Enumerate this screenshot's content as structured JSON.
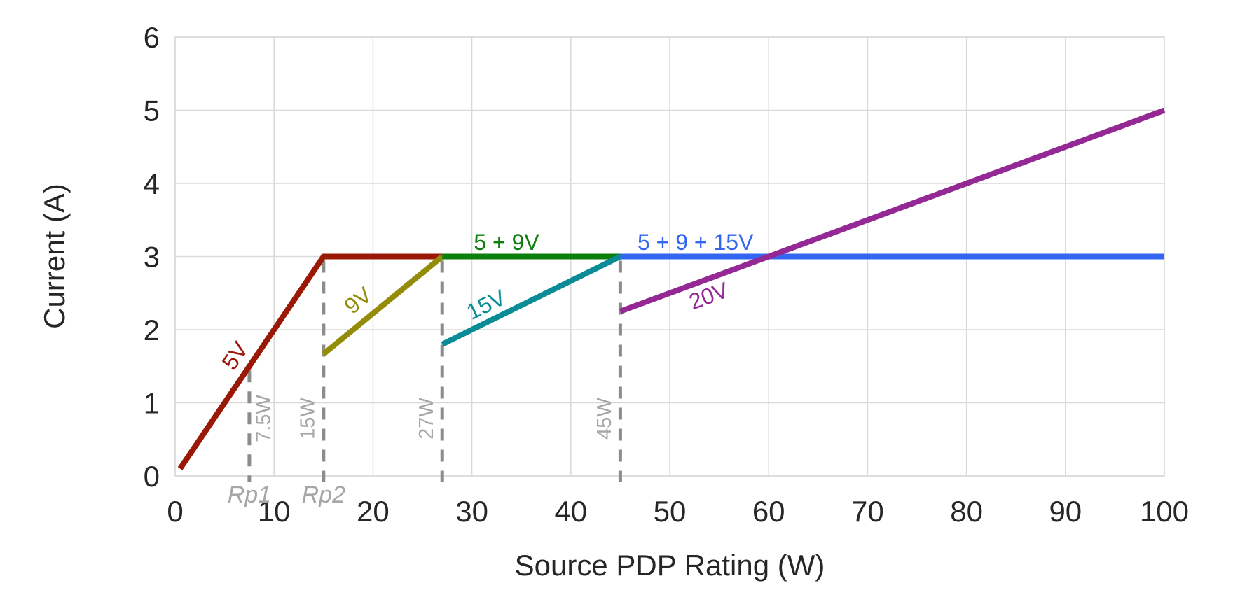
{
  "chart_data": {
    "type": "line",
    "title": "",
    "xlabel": "Source PDP Rating (W)",
    "ylabel": "Current (A)",
    "xlim": [
      0,
      100
    ],
    "ylim": [
      0,
      6
    ],
    "xticks": [
      0,
      10,
      20,
      30,
      40,
      50,
      60,
      70,
      80,
      90,
      100
    ],
    "yticks": [
      0,
      1,
      2,
      3,
      4,
      5,
      6
    ],
    "grid": true,
    "legend_position": "inline-labels",
    "series": [
      {
        "name": "5V",
        "color": "#9A1806",
        "points": [
          [
            0.5,
            0.1
          ],
          [
            15,
            3
          ],
          [
            27,
            3
          ]
        ]
      },
      {
        "name": "9V",
        "color": "#948C08",
        "points": [
          [
            15,
            1.667
          ],
          [
            27,
            3
          ]
        ]
      },
      {
        "name": "5 + 9V",
        "color": "#0B7F0B",
        "points": [
          [
            27,
            3
          ],
          [
            45,
            3
          ]
        ]
      },
      {
        "name": "15V",
        "color": "#0A8C96",
        "points": [
          [
            27,
            1.8
          ],
          [
            45,
            3
          ]
        ]
      },
      {
        "name": "5 + 9 + 15V",
        "color": "#3366F2",
        "points": [
          [
            45,
            3
          ],
          [
            100,
            3
          ]
        ]
      },
      {
        "name": "20V",
        "color": "#942894",
        "points": [
          [
            45,
            2.25
          ],
          [
            100,
            5
          ]
        ]
      }
    ],
    "series_labels": [
      {
        "text": "5V",
        "x": 6.2,
        "y": 1.63,
        "rotate": -56,
        "color": "#9A1806"
      },
      {
        "text": "9V",
        "x": 18.6,
        "y": 2.38,
        "rotate": -39,
        "color": "#948C08"
      },
      {
        "text": "5 + 9V",
        "x": 33.5,
        "y": 3.17,
        "rotate": 0,
        "color": "#0B7F0B"
      },
      {
        "text": "15V",
        "x": 31.5,
        "y": 2.32,
        "rotate": -26,
        "color": "#0A8C96"
      },
      {
        "text": "5 + 9 + 15V",
        "x": 52.6,
        "y": 3.17,
        "rotate": 0,
        "color": "#3366F2"
      },
      {
        "text": "20V",
        "x": 54.0,
        "y": 2.44,
        "rotate": -20,
        "color": "#942894"
      }
    ],
    "reference_lines": [
      {
        "label": "7.5W",
        "x": 7.5,
        "top": 1.5,
        "label_side": "right"
      },
      {
        "label": "15W",
        "x": 15,
        "top": 3,
        "label_side": "left"
      },
      {
        "label": "27W",
        "x": 27,
        "top": 3,
        "label_side": "left"
      },
      {
        "label": "45W",
        "x": 45,
        "top": 3,
        "label_side": "left"
      }
    ],
    "axis_annotations": [
      {
        "label": "Rp1",
        "x": 7.5
      },
      {
        "label": "Rp2",
        "x": 15
      }
    ],
    "colors": {
      "gridline": "#D9D9D9",
      "plot_border": "#D9D9D9",
      "reference_dash": "#8C8C8C",
      "reference_text": "#A6A6A6",
      "axis_text": "#262626"
    }
  }
}
